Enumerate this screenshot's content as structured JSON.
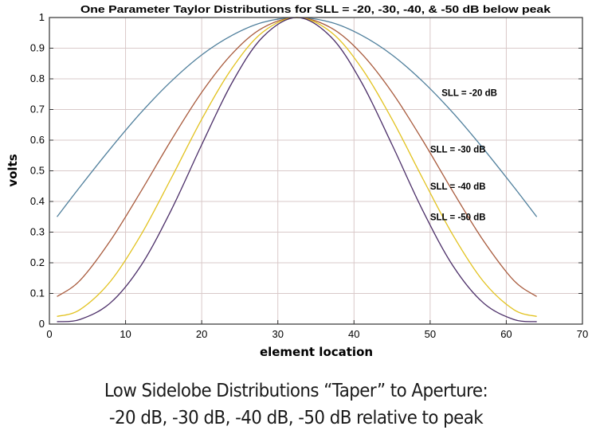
{
  "chart_data": {
    "type": "line",
    "title": "One Parameter Taylor Distributions for SLL = -20, -30, -40, & -50 dB below peak",
    "xlabel": "element location",
    "ylabel": "volts",
    "xlim": [
      0,
      70
    ],
    "ylim": [
      0,
      1
    ],
    "xticks": [
      "0",
      "10",
      "20",
      "30",
      "40",
      "50",
      "60",
      "70"
    ],
    "yticks": [
      "0",
      "0.1",
      "0.2",
      "0.3",
      "0.4",
      "0.5",
      "0.6",
      "0.7",
      "0.8",
      "0.9",
      "1"
    ],
    "grid": true,
    "x": [
      1,
      4,
      8,
      12,
      16,
      20,
      24,
      28,
      32.5,
      37,
      41,
      45,
      49,
      53,
      57,
      61,
      64
    ],
    "series": [
      {
        "name": "SLL = -20 dB",
        "color": "#4f7f9c",
        "values": [
          0.35,
          0.447,
          0.572,
          0.689,
          0.792,
          0.878,
          0.942,
          0.984,
          1,
          0.984,
          0.942,
          0.878,
          0.792,
          0.689,
          0.572,
          0.447,
          0.35
        ],
        "label_at": [
          51.5,
          0.755
        ]
      },
      {
        "name": "SLL = -30 dB",
        "color": "#a85a3c",
        "values": [
          0.09,
          0.142,
          0.272,
          0.432,
          0.6,
          0.756,
          0.882,
          0.966,
          1,
          0.966,
          0.882,
          0.756,
          0.6,
          0.432,
          0.272,
          0.142,
          0.09
        ],
        "label_at": [
          50,
          0.57
        ]
      },
      {
        "name": "SLL = -40 dB",
        "color": "#e2c21e",
        "values": [
          0.025,
          0.047,
          0.139,
          0.29,
          0.476,
          0.668,
          0.835,
          0.952,
          1,
          0.952,
          0.835,
          0.668,
          0.476,
          0.29,
          0.139,
          0.047,
          0.025
        ],
        "label_at": [
          50,
          0.45
        ]
      },
      {
        "name": "SLL = -50 dB",
        "color": "#4b2e68",
        "values": [
          0.008,
          0.015,
          0.069,
          0.19,
          0.372,
          0.585,
          0.788,
          0.936,
          1,
          0.936,
          0.788,
          0.585,
          0.372,
          0.19,
          0.069,
          0.015,
          0.008
        ],
        "label_at": [
          50,
          0.35
        ]
      }
    ]
  },
  "caption": {
    "line1": "Low Sidelobe Distributions “Taper” to Aperture:",
    "line2": "-20 dB, -30 dB, -40 dB, -50 dB relative to peak"
  }
}
